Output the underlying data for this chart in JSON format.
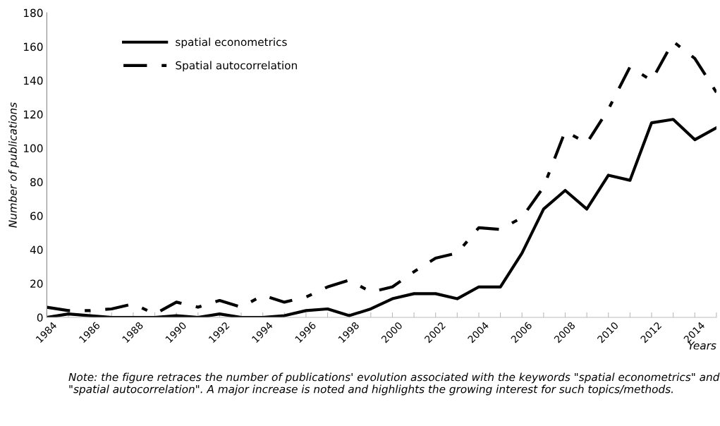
{
  "chart_data": {
    "type": "line",
    "xlabel": "Years",
    "ylabel": "Number of publications",
    "x": [
      1984,
      1985,
      1986,
      1987,
      1988,
      1989,
      1990,
      1991,
      1992,
      1993,
      1994,
      1995,
      1996,
      1997,
      1998,
      1999,
      2000,
      2001,
      2002,
      2003,
      2004,
      2005,
      2006,
      2007,
      2008,
      2009,
      2010,
      2011,
      2012,
      2013,
      2014,
      2015
    ],
    "series": [
      {
        "name": "spatial econometrics",
        "color": "#000000",
        "line_style": "solid",
        "values": [
          0,
          2,
          1,
          0,
          0,
          0,
          1,
          0,
          2,
          0,
          0,
          1,
          4,
          5,
          1,
          5,
          11,
          14,
          14,
          11,
          18,
          18,
          38,
          64,
          75,
          64,
          84,
          81,
          115,
          117,
          105,
          112
        ]
      },
      {
        "name": "Spatial autocorrelation",
        "color": "#000000",
        "line_style": "dashdot",
        "values": [
          6,
          4,
          4,
          5,
          8,
          2,
          9,
          6,
          10,
          6,
          13,
          9,
          12,
          18,
          22,
          15,
          18,
          27,
          35,
          38,
          53,
          52,
          59,
          77,
          110,
          103,
          123,
          148,
          140,
          163,
          153,
          133
        ]
      }
    ],
    "xlim": [
      1984,
      2015
    ],
    "xticks": [
      1984,
      {
        "value": 1985,
        "label": null
      },
      1986,
      {
        "value": 1987,
        "label": null
      },
      1988,
      {
        "value": 1989,
        "label": null
      },
      1990,
      {
        "value": 1991,
        "label": null
      },
      1992,
      {
        "value": 1993,
        "label": null
      },
      1994,
      {
        "value": 1995,
        "label": null
      },
      1996,
      {
        "value": 1997,
        "label": null
      },
      1998,
      {
        "value": 1999,
        "label": null
      },
      2000,
      {
        "value": 2001,
        "label": null
      },
      2002,
      {
        "value": 2003,
        "label": null
      },
      2004,
      {
        "value": 2005,
        "label": null
      },
      2006,
      {
        "value": 2007,
        "label": null
      },
      2008,
      {
        "value": 2009,
        "label": null
      },
      2010,
      {
        "value": 2011,
        "label": null
      },
      2012,
      {
        "value": 2013,
        "label": null
      },
      2014,
      {
        "value": 2015,
        "label": null
      }
    ],
    "ylim": [
      0,
      180
    ],
    "yticks": [
      0,
      20,
      40,
      60,
      80,
      100,
      120,
      140,
      160,
      180
    ],
    "grid": false,
    "legend": "top left",
    "marker": "none",
    "annotations": [
      "Note: the figure retraces the number of publications' evolution associated with the keywords \"spatial econometrics\" and \"spatial autocorrelation\". A major increase is noted and highlights the growing interest for such topics/methods."
    ]
  }
}
